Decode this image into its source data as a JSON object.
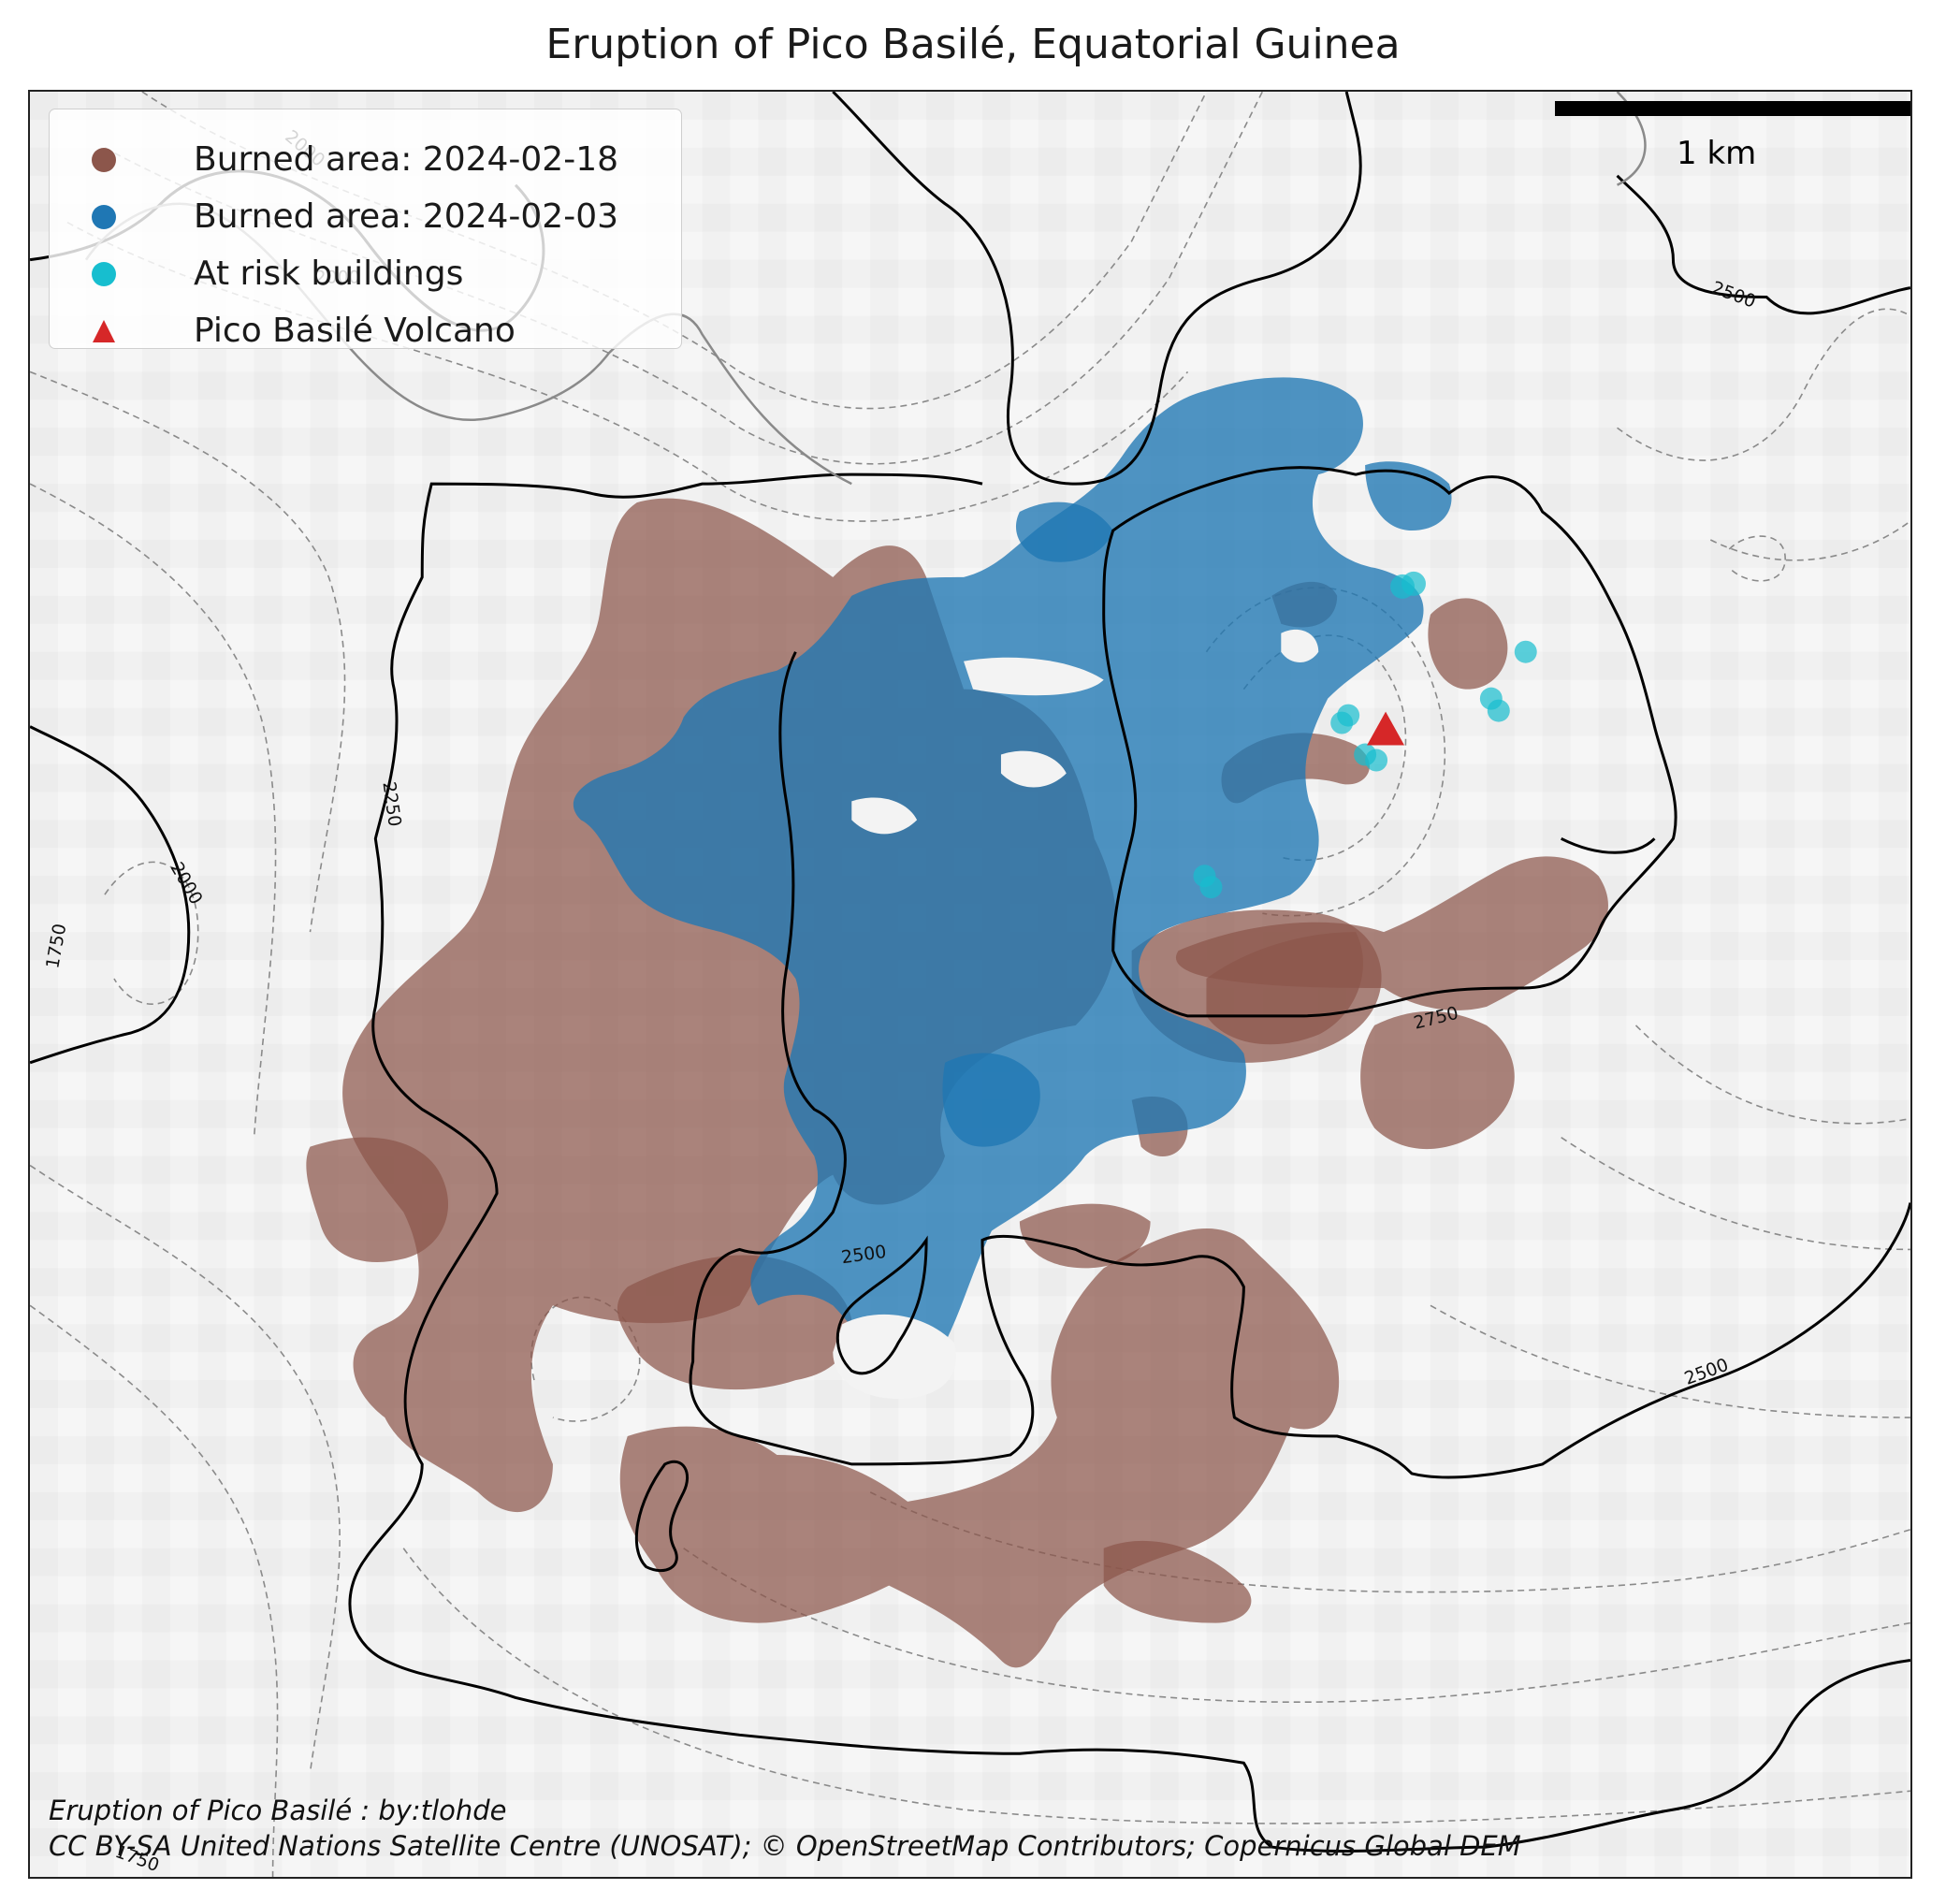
{
  "title": "Eruption of Pico Basilé, Equatorial Guinea",
  "legend": [
    {
      "label": "Burned area: 2024-02-18",
      "symbol": "circle",
      "color": "#8c564b"
    },
    {
      "label": "Burned area: 2024-02-03",
      "symbol": "circle",
      "color": "#1f77b4"
    },
    {
      "label": "At risk buildings",
      "symbol": "circle",
      "color": "#17becf"
    },
    {
      "label": "Pico Basilé Volcano",
      "symbol": "triangle",
      "color": "#d62728"
    }
  ],
  "scale_bar": {
    "label": "1 km"
  },
  "contour_labels": [
    "2500",
    "2250",
    "2000",
    "1750",
    "2750",
    "2500",
    "2500",
    "2000",
    "2000",
    "1750"
  ],
  "credits": {
    "line1": "Eruption of Pico Basilé : by:tlohde",
    "line2": "CC BY-SA United Nations Satellite Centre (UNOSAT); © OpenStreetMap Contributors; Copernicus Global DEM"
  },
  "colors": {
    "burned_0218": "#8c564b",
    "burned_0203": "#1f77b4",
    "buildings": "#17becf",
    "volcano": "#d62728"
  }
}
